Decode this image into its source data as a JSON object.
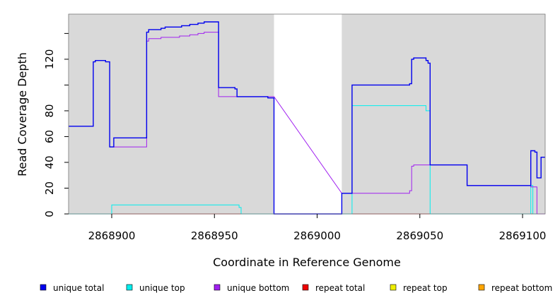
{
  "chart_data": {
    "type": "line",
    "title": "",
    "xlabel": "Coordinate in Reference Genome",
    "ylabel": "Read Coverage Depth",
    "xlim": [
      2868879,
      2869111
    ],
    "ylim": [
      0,
      155
    ],
    "x_ticks": [
      2868900,
      2868950,
      2869000,
      2869050,
      2869100
    ],
    "y_ticks": [
      0,
      20,
      40,
      60,
      80,
      100,
      120,
      140
    ],
    "y_tick_labels": [
      "0",
      "20",
      "40",
      "60",
      "80",
      "",
      "120",
      ""
    ],
    "grid": false,
    "background_color": "#d9d9d9",
    "gaps": [
      [
        2868979,
        2869012
      ]
    ],
    "legend_position": "bottom",
    "series": [
      {
        "name": "unique total",
        "color": "#0000ee",
        "points": [
          [
            2868879,
            68
          ],
          [
            2868891,
            68
          ],
          [
            2868891,
            118
          ],
          [
            2868892,
            118
          ],
          [
            2868892,
            119
          ],
          [
            2868897,
            119
          ],
          [
            2868897,
            118
          ],
          [
            2868899,
            118
          ],
          [
            2868899,
            52
          ],
          [
            2868901,
            52
          ],
          [
            2868901,
            59
          ],
          [
            2868917,
            59
          ],
          [
            2868917,
            141
          ],
          [
            2868918,
            141
          ],
          [
            2868918,
            143
          ],
          [
            2868924,
            143
          ],
          [
            2868924,
            144
          ],
          [
            2868926,
            144
          ],
          [
            2868926,
            145
          ],
          [
            2868934,
            145
          ],
          [
            2868934,
            146
          ],
          [
            2868938,
            146
          ],
          [
            2868938,
            147
          ],
          [
            2868942,
            147
          ],
          [
            2868942,
            148
          ],
          [
            2868945,
            148
          ],
          [
            2868945,
            149
          ],
          [
            2868952,
            149
          ],
          [
            2868952,
            98
          ],
          [
            2868960,
            98
          ],
          [
            2868960,
            97
          ],
          [
            2868961,
            97
          ],
          [
            2868961,
            91
          ],
          [
            2868976,
            91
          ],
          [
            2868976,
            90
          ],
          [
            2868979,
            90
          ],
          [
            2868979,
            0
          ],
          [
            2869012,
            0
          ],
          [
            2869012,
            16
          ],
          [
            2869017,
            16
          ],
          [
            2869017,
            100
          ],
          [
            2869045,
            100
          ],
          [
            2869045,
            101
          ],
          [
            2869046,
            101
          ],
          [
            2869046,
            120
          ],
          [
            2869047,
            120
          ],
          [
            2869047,
            121
          ],
          [
            2869053,
            121
          ],
          [
            2869053,
            119
          ],
          [
            2869054,
            119
          ],
          [
            2869054,
            117
          ],
          [
            2869055,
            117
          ],
          [
            2869055,
            38
          ],
          [
            2869073,
            38
          ],
          [
            2869073,
            22
          ],
          [
            2869104,
            22
          ],
          [
            2869104,
            49
          ],
          [
            2869106,
            49
          ],
          [
            2869106,
            48
          ],
          [
            2869107,
            48
          ],
          [
            2869107,
            28
          ],
          [
            2869109,
            28
          ],
          [
            2869109,
            44
          ],
          [
            2869111,
            44
          ]
        ]
      },
      {
        "name": "unique top",
        "color": "#00eeee",
        "points": [
          [
            2868879,
            0
          ],
          [
            2868900,
            0
          ],
          [
            2868900,
            7
          ],
          [
            2868962,
            7
          ],
          [
            2868962,
            5
          ],
          [
            2868963,
            5
          ],
          [
            2868963,
            0
          ],
          [
            2868979,
            0
          ],
          [
            2869017,
            0
          ],
          [
            2869017,
            84
          ],
          [
            2869053,
            84
          ],
          [
            2869053,
            80
          ],
          [
            2869055,
            80
          ],
          [
            2869055,
            0
          ],
          [
            2869104,
            0
          ],
          [
            2869104,
            22
          ],
          [
            2869105,
            22
          ],
          [
            2869105,
            0
          ],
          [
            2869111,
            0
          ]
        ]
      },
      {
        "name": "unique bottom",
        "color": "#a020f0",
        "points": [
          [
            2868899,
            52
          ],
          [
            2868917,
            52
          ],
          [
            2868917,
            134
          ],
          [
            2868918,
            134
          ],
          [
            2868918,
            136
          ],
          [
            2868924,
            136
          ],
          [
            2868924,
            137
          ],
          [
            2868933,
            137
          ],
          [
            2868933,
            138
          ],
          [
            2868938,
            138
          ],
          [
            2868938,
            139
          ],
          [
            2868942,
            139
          ],
          [
            2868942,
            140
          ],
          [
            2868945,
            140
          ],
          [
            2868945,
            141
          ],
          [
            2868952,
            141
          ],
          [
            2868952,
            91
          ],
          [
            2868979,
            91
          ],
          [
            2869012,
            16
          ],
          [
            2869045,
            16
          ],
          [
            2869045,
            18
          ],
          [
            2869046,
            18
          ],
          [
            2869046,
            37
          ],
          [
            2869047,
            37
          ],
          [
            2869047,
            38
          ],
          [
            2869073,
            38
          ],
          [
            2869073,
            22
          ],
          [
            2869104,
            22
          ],
          [
            2869104,
            21
          ],
          [
            2869107,
            21
          ],
          [
            2869107,
            0
          ],
          [
            2869111,
            0
          ]
        ]
      },
      {
        "name": "repeat total",
        "color": "#ee0000",
        "points": [
          [
            2868879,
            0
          ],
          [
            2869111,
            0
          ]
        ]
      },
      {
        "name": "repeat top",
        "color": "#eeee00",
        "points": [
          [
            2868879,
            0
          ],
          [
            2869111,
            0
          ]
        ]
      },
      {
        "name": "repeat bottom",
        "color": "#ffa500",
        "points": [
          [
            2868900,
            0
          ],
          [
            2868979,
            0
          ],
          [
            2869012,
            0
          ],
          [
            2869107,
            0
          ]
        ]
      }
    ]
  }
}
